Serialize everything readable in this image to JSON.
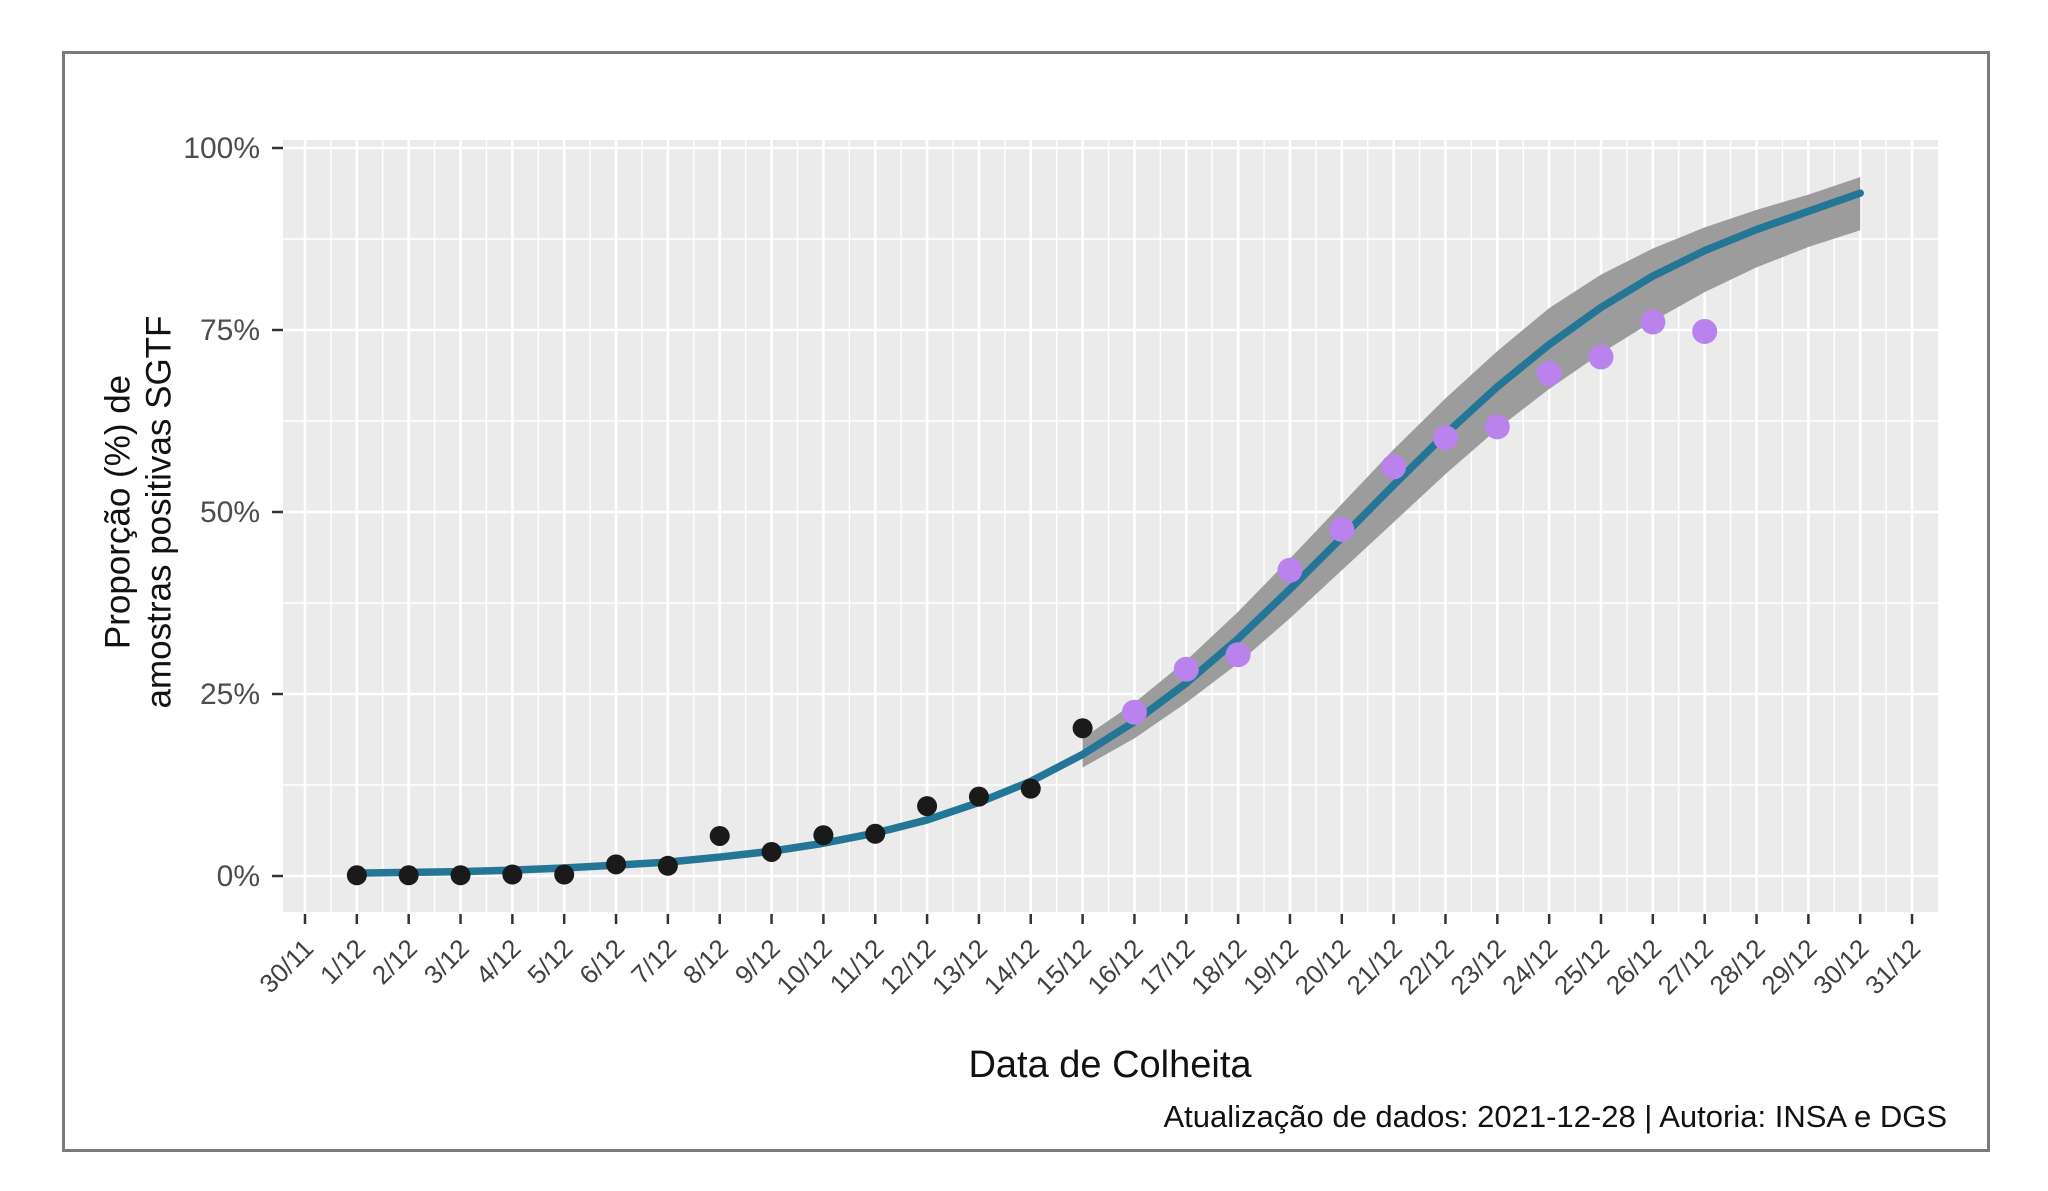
{
  "figure": {
    "border_color": "#7b7b7b",
    "background": "#ffffff"
  },
  "chart_data": {
    "type": "scatter",
    "title": "",
    "xlabel": "Data de Colheita",
    "ylabel": "Proporção (%) de amostras positivas SGTF",
    "ylabel_lines": [
      "Proporção (%) de",
      "amostras positivas SGTF"
    ],
    "caption": "Atualização de dados: 2021-12-28 | Autoria: INSA e DGS",
    "ylim": [
      0,
      100
    ],
    "y_ticks_pct": [
      0,
      25,
      50,
      75,
      100
    ],
    "y_tick_labels": [
      "0%",
      "25%",
      "50%",
      "75%",
      "100%"
    ],
    "y_minor_ticks_pct": [
      12.5,
      37.5,
      62.5,
      87.5
    ],
    "x_tick_labels": [
      "30/11",
      "1/12",
      "2/12",
      "3/12",
      "4/12",
      "5/12",
      "6/12",
      "7/12",
      "8/12",
      "9/12",
      "10/12",
      "11/12",
      "12/12",
      "13/12",
      "14/12",
      "15/12",
      "16/12",
      "17/12",
      "18/12",
      "19/12",
      "20/12",
      "21/12",
      "22/12",
      "23/12",
      "24/12",
      "25/12",
      "26/12",
      "27/12",
      "28/12",
      "29/12",
      "30/12",
      "31/12"
    ],
    "grid": "white major and minor gridlines on light-gray panel, legend: none",
    "panel_color": "#ebebeb",
    "series": [
      {
        "id": "observed-points",
        "type": "scatter",
        "color": "#1a1a1a",
        "x": [
          "1/12",
          "2/12",
          "3/12",
          "4/12",
          "5/12",
          "6/12",
          "7/12",
          "8/12",
          "9/12",
          "10/12",
          "11/12",
          "12/12",
          "13/12",
          "14/12",
          "15/12"
        ],
        "y": [
          0.1,
          0.1,
          0.1,
          0.2,
          0.2,
          1.6,
          1.4,
          5.5,
          3.3,
          5.6,
          5.8,
          9.6,
          10.9,
          12.0,
          20.3
        ]
      },
      {
        "id": "recent-points",
        "type": "scatter",
        "color": "#ba82ec",
        "x": [
          "16/12",
          "17/12",
          "18/12",
          "19/12",
          "20/12",
          "21/12",
          "22/12",
          "23/12",
          "24/12",
          "25/12",
          "26/12",
          "27/12"
        ],
        "y": [
          22.5,
          28.4,
          30.4,
          42.0,
          47.6,
          56.2,
          60.2,
          61.7,
          69.0,
          71.3,
          76.1,
          74.8
        ]
      },
      {
        "id": "fitted-curve",
        "type": "line",
        "color": "#237696",
        "x": [
          "1/12",
          "2/12",
          "3/12",
          "4/12",
          "5/12",
          "6/12",
          "7/12",
          "8/12",
          "9/12",
          "10/12",
          "11/12",
          "12/12",
          "13/12",
          "14/12",
          "15/12",
          "16/12",
          "17/12",
          "18/12",
          "19/12",
          "20/12",
          "21/12",
          "22/12",
          "23/12",
          "24/12",
          "25/12",
          "26/12",
          "27/12",
          "28/12",
          "29/12",
          "30/12"
        ],
        "y": [
          0.4,
          0.5,
          0.6,
          0.8,
          1.1,
          1.5,
          1.9,
          2.6,
          3.4,
          4.5,
          5.9,
          7.7,
          10.1,
          13.0,
          16.7,
          21.2,
          26.5,
          32.6,
          39.4,
          46.5,
          53.7,
          60.7,
          67.2,
          73.0,
          78.1,
          82.4,
          85.9,
          88.8,
          91.3,
          93.8
        ]
      },
      {
        "id": "confidence-ribbon",
        "type": "ribbon",
        "color": "#9c9c9c",
        "x": [
          "15/12",
          "16/12",
          "17/12",
          "18/12",
          "19/12",
          "20/12",
          "21/12",
          "22/12",
          "23/12",
          "24/12",
          "25/12",
          "26/12",
          "27/12",
          "28/12",
          "29/12",
          "30/12"
        ],
        "lo": [
          14.9,
          18.9,
          23.8,
          29.2,
          35.4,
          42.0,
          48.6,
          55.2,
          61.4,
          66.9,
          71.8,
          76.2,
          80.2,
          83.6,
          86.4,
          88.7
        ],
        "hi": [
          18.9,
          23.8,
          29.6,
          36.3,
          43.6,
          51.1,
          58.6,
          65.6,
          72.1,
          78.0,
          82.6,
          86.2,
          89.1,
          91.5,
          93.6,
          96.0
        ]
      }
    ]
  }
}
